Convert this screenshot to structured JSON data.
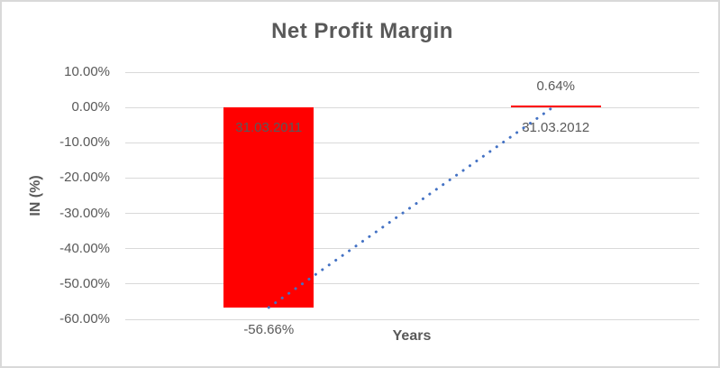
{
  "chart_data": {
    "type": "bar",
    "title": "Net Profit Margin",
    "xlabel": "Years",
    "ylabel": "IN (%)",
    "categories": [
      "31.03.2011",
      "31.03.2012"
    ],
    "values": [
      -56.66,
      0.64
    ],
    "data_labels": [
      "-56.66%",
      "0.64%"
    ],
    "ylim": [
      -60,
      10
    ],
    "ytick_step": 10,
    "ytick_labels": [
      "10.00%",
      "0.00%",
      "-10.00%",
      "-20.00%",
      "-30.00%",
      "-40.00%",
      "-50.00%",
      "-60.00%"
    ],
    "grid": true,
    "legend": "none",
    "trendline": {
      "type": "linear",
      "style": "dotted",
      "points": [
        {
          "category": "31.03.2011",
          "value": -56.66
        },
        {
          "category": "31.03.2012",
          "value": 0.64
        }
      ]
    },
    "colors": {
      "bar": "#FF0000",
      "trendline": "#4472C4",
      "text": "#595959",
      "gridline": "#D9D9D9",
      "border": "#D9D9D9"
    }
  }
}
